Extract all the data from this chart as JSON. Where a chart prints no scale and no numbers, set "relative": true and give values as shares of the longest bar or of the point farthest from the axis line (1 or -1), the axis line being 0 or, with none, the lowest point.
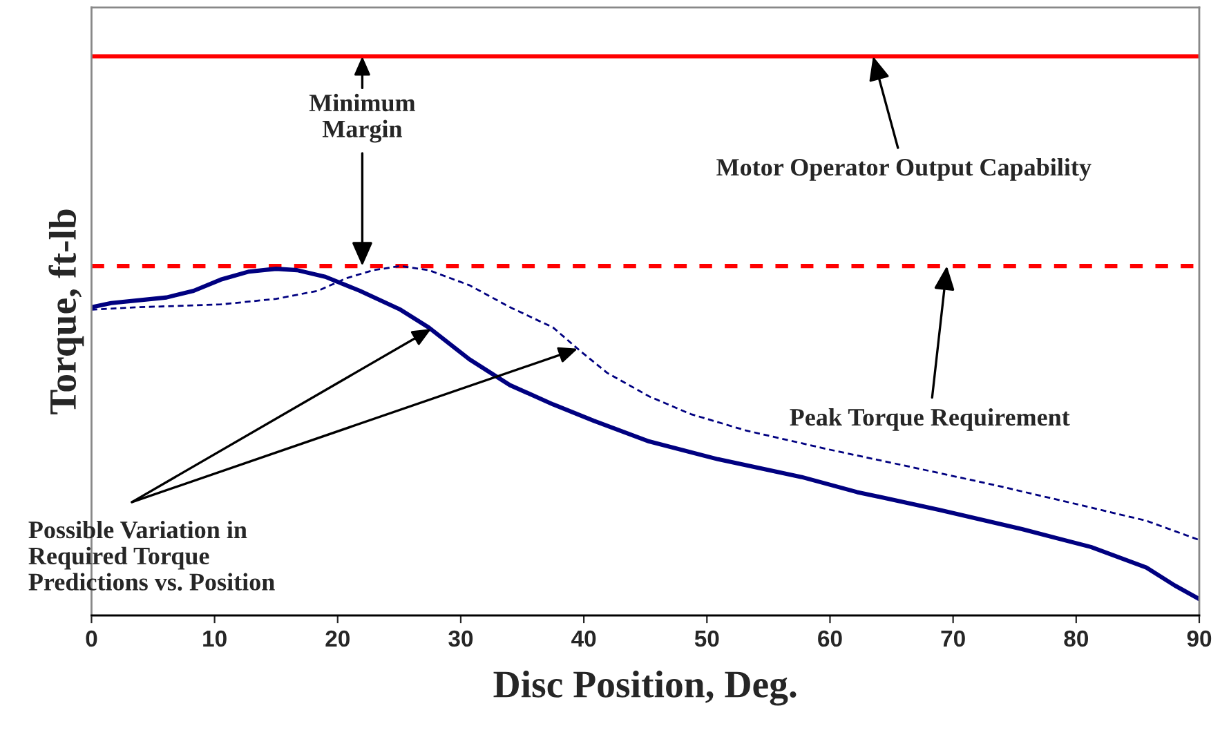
{
  "chart_data": {
    "type": "line",
    "relative": true,
    "xlabel": "Disc Position, Deg.",
    "ylabel": "Torque, ft-lb",
    "xlim": [
      0,
      90
    ],
    "xticks": [
      0,
      10,
      20,
      30,
      40,
      50,
      60,
      70,
      80,
      90
    ],
    "tick_labels": "x",
    "grid": false,
    "legend": false,
    "series": [
      {
        "color": "#000080",
        "line_style": "solid",
        "x": [
          0,
          1.6,
          6.1,
          8.3,
          10.5,
          12.8,
          15.0,
          16.7,
          19.0,
          21.8,
          25.1,
          27.4,
          30.7,
          34.0,
          37.5,
          40.8,
          45.3,
          50.9,
          57.7,
          62.2,
          68.9,
          75.6,
          81.2,
          85.7,
          88.0,
          90
        ],
        "values": [
          0.882,
          0.894,
          0.91,
          0.929,
          0.961,
          0.984,
          0.992,
          0.988,
          0.969,
          0.929,
          0.875,
          0.824,
          0.733,
          0.659,
          0.604,
          0.557,
          0.498,
          0.447,
          0.396,
          0.353,
          0.302,
          0.247,
          0.196,
          0.137,
          0.086,
          0.047
        ]
      },
      {
        "color": "#000080",
        "line_style": "dashed",
        "x": [
          0,
          3.8,
          10.5,
          15.0,
          18.4,
          20.7,
          22.9,
          25.1,
          27.4,
          30.7,
          34.0,
          37.5,
          39.7,
          41.9,
          45.3,
          48.7,
          53.2,
          59.9,
          66.7,
          73.4,
          80.1,
          85.7,
          90
        ],
        "values": [
          0.875,
          0.882,
          0.89,
          0.906,
          0.929,
          0.965,
          0.988,
          1.0,
          0.988,
          0.945,
          0.882,
          0.824,
          0.757,
          0.694,
          0.627,
          0.576,
          0.529,
          0.475,
          0.424,
          0.373,
          0.318,
          0.271,
          0.216
        ]
      }
    ],
    "ref_lines": [
      {
        "axis": "y",
        "value": 1.6,
        "color": "#ff0000",
        "line_style": "solid"
      },
      {
        "axis": "y",
        "value": 1.0,
        "color": "#ff0000",
        "line_style": "dashed"
      }
    ],
    "annotations": [
      {
        "text": "Minimum\nMargin",
        "x": 22,
        "y": 1.0
      },
      {
        "text": "Motor Operator Output Capability",
        "x": 63.5,
        "y": 1.6
      },
      {
        "text": "Peak Torque Requirement",
        "x": 69.5,
        "y": 1.0
      },
      {
        "text": "Possible Variation in\nRequired Torque\nPredictions vs. Position",
        "x": 27.6,
        "y": 0.82
      }
    ]
  }
}
